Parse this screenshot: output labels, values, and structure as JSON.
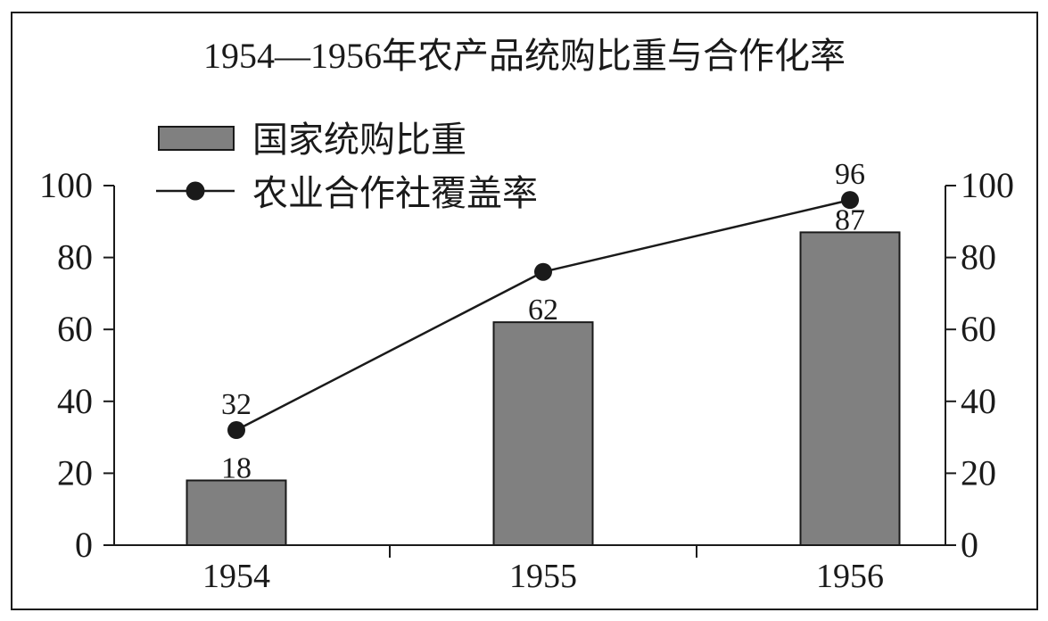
{
  "chart_data": {
    "type": "bar",
    "title": "1954—1956年农产品统购比重与合作化率",
    "categories": [
      "1954",
      "1955",
      "1956"
    ],
    "series": [
      {
        "name": "国家统购比重",
        "type": "bar",
        "values": [
          18,
          62,
          87
        ],
        "data_labels": [
          "18",
          "62",
          "87"
        ],
        "color": "#808080"
      },
      {
        "name": "农业合作社覆盖率",
        "type": "line",
        "values": [
          32,
          76,
          96
        ],
        "data_labels": [
          "32",
          null,
          "96"
        ],
        "color": "#1a1a1a"
      }
    ],
    "ylim": [
      0,
      100
    ],
    "y2lim": [
      0,
      100
    ],
    "yticks": [
      "0",
      "20",
      "40",
      "60",
      "80",
      "100"
    ],
    "y2ticks": [
      "0",
      "20",
      "40",
      "60",
      "80",
      "100"
    ],
    "grid": false,
    "legend": "top-left"
  }
}
